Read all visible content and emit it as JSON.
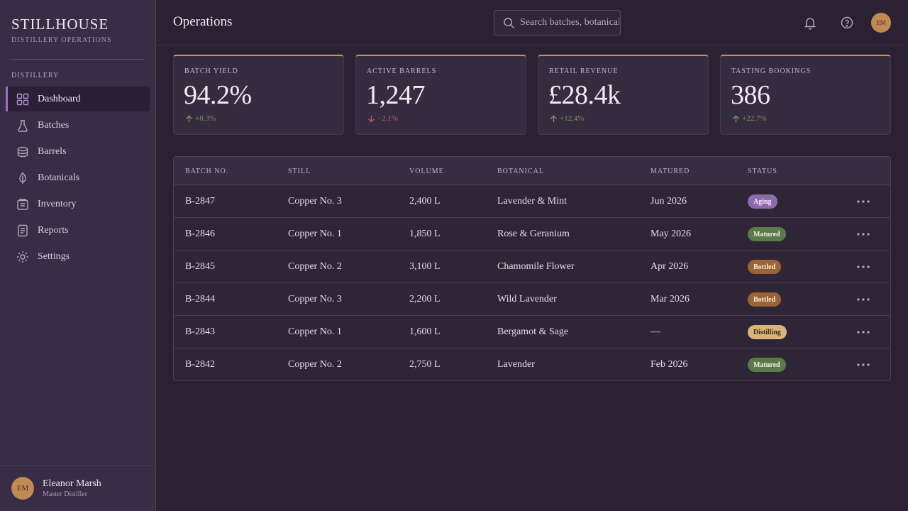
{
  "brand": {
    "name": "STILLHOUSE",
    "subtitle": "DISTILLERY OPERATIONS"
  },
  "sidebar": {
    "section_label": "DISTILLERY",
    "items": [
      {
        "label": "Dashboard",
        "icon": "dashboard-grid-icon",
        "active": true
      },
      {
        "label": "Batches",
        "icon": "flask-icon",
        "active": false
      },
      {
        "label": "Barrels",
        "icon": "barrel-icon",
        "active": false
      },
      {
        "label": "Botanicals",
        "icon": "leaf-icon",
        "active": false
      },
      {
        "label": "Inventory",
        "icon": "inventory-box-icon",
        "active": false
      },
      {
        "label": "Reports",
        "icon": "report-document-icon",
        "active": false
      },
      {
        "label": "Settings",
        "icon": "gear-icon",
        "active": false
      }
    ],
    "user": {
      "initials": "EM",
      "name": "Eleanor Marsh",
      "role": "Master Distiller"
    }
  },
  "header": {
    "title": "Operations",
    "search_placeholder": "Search batches, botanicals...",
    "avatar_initials": "EM"
  },
  "kpis": [
    {
      "label": "BATCH YIELD",
      "value": "94.2%",
      "delta": "+8.3%",
      "direction": "up"
    },
    {
      "label": "ACTIVE BARRELS",
      "value": "1,247",
      "delta": "−2.1%",
      "direction": "down"
    },
    {
      "label": "RETAIL REVENUE",
      "value": "£28.4k",
      "delta": "+12.4%",
      "direction": "up"
    },
    {
      "label": "TASTING BOOKINGS",
      "value": "386",
      "delta": "+22.7%",
      "direction": "up"
    }
  ],
  "table": {
    "columns": [
      "BATCH NO.",
      "STILL",
      "VOLUME",
      "BOTANICAL",
      "MATURED",
      "STATUS"
    ],
    "rows": [
      {
        "batch": "B-2847",
        "still": "Copper No. 3",
        "volume": "2,400 L",
        "botanical": "Lavender & Mint",
        "matured": "Jun 2026",
        "status": "Aging"
      },
      {
        "batch": "B-2846",
        "still": "Copper No. 1",
        "volume": "1,850 L",
        "botanical": "Rose & Geranium",
        "matured": "May 2026",
        "status": "Matured"
      },
      {
        "batch": "B-2845",
        "still": "Copper No. 2",
        "volume": "3,100 L",
        "botanical": "Chamomile Flower",
        "matured": "Apr 2026",
        "status": "Bottled"
      },
      {
        "batch": "B-2844",
        "still": "Copper No. 3",
        "volume": "2,200 L",
        "botanical": "Wild Lavender",
        "matured": "Mar 2026",
        "status": "Bottled"
      },
      {
        "batch": "B-2843",
        "still": "Copper No. 1",
        "volume": "1,600 L",
        "botanical": "Bergamot & Sage",
        "matured": "—",
        "status": "Distilling"
      },
      {
        "batch": "B-2842",
        "still": "Copper No. 2",
        "volume": "2,750 L",
        "botanical": "Lavender",
        "matured": "Feb 2026",
        "status": "Matured"
      }
    ]
  },
  "status_colors": {
    "Aging": {
      "bg": "#8e6aae",
      "fg": "#f3ecf7"
    },
    "Matured": {
      "bg": "#5b7a4a",
      "fg": "#eef3e8"
    },
    "Bottled": {
      "bg": "#9a6436",
      "fg": "#f7ecdf"
    },
    "Distilling": {
      "bg": "#d9b47a",
      "fg": "#3a2a18"
    }
  }
}
